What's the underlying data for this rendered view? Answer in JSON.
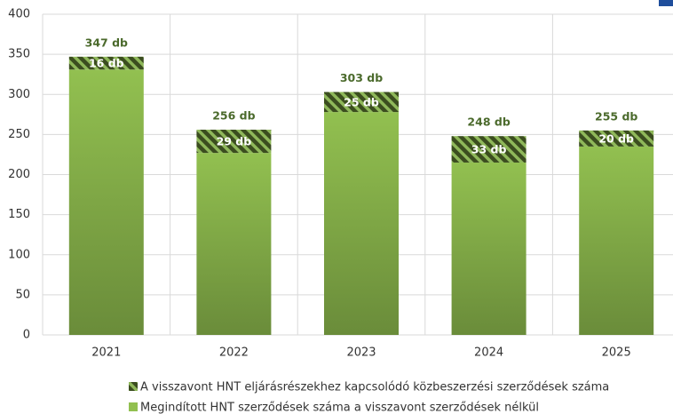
{
  "chart_data": {
    "type": "stacked_bar",
    "categories": [
      "2021",
      "2022",
      "2023",
      "2024",
      "2025"
    ],
    "series": [
      {
        "name": "Megindított HNT szerződések száma a visszavont szerződések nélkül",
        "color": "#92c050",
        "values": [
          331,
          227,
          278,
          215,
          235
        ]
      },
      {
        "name": "A visszavont HNT eljárásrészekhez kapcsolódó közbeszerzési szerződések száma",
        "color": "#3b4d1f",
        "values": [
          16,
          29,
          25,
          33,
          20
        ],
        "value_labels": [
          "16 db",
          "29 db",
          "25 db",
          "33 db",
          "20 db"
        ]
      }
    ],
    "total_labels": [
      "347 db",
      "256 db",
      "303 db",
      "248 db",
      "255 db"
    ],
    "ylim": [
      0,
      400
    ],
    "yticks": [
      0,
      50,
      100,
      150,
      200,
      250,
      300,
      350,
      400
    ],
    "grid": true
  }
}
